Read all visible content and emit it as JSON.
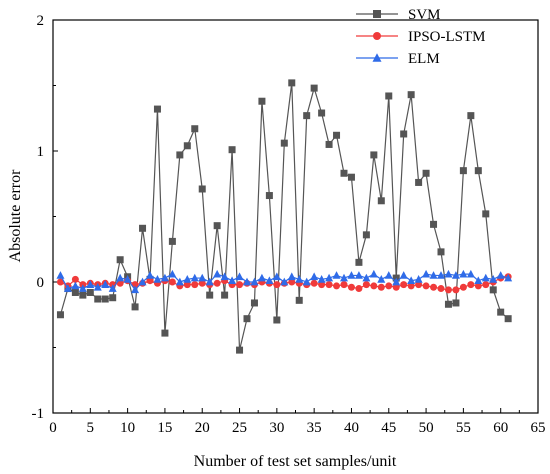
{
  "chart_data": {
    "type": "line",
    "title": "",
    "xlabel": "Number of test set samples/unit",
    "ylabel": "Absolute error",
    "xlim": [
      0,
      65
    ],
    "ylim": [
      -1,
      2
    ],
    "xticks": [
      0,
      5,
      10,
      15,
      20,
      25,
      30,
      35,
      40,
      45,
      50,
      55,
      60,
      65
    ],
    "yticks": [
      -1,
      0,
      1,
      2
    ],
    "grid": false,
    "legend_position": "top-right",
    "x": [
      1,
      2,
      3,
      4,
      5,
      6,
      7,
      8,
      9,
      10,
      11,
      12,
      13,
      14,
      15,
      16,
      17,
      18,
      19,
      20,
      21,
      22,
      23,
      24,
      25,
      26,
      27,
      28,
      29,
      30,
      31,
      32,
      33,
      34,
      35,
      36,
      37,
      38,
      39,
      40,
      41,
      42,
      43,
      44,
      45,
      46,
      47,
      48,
      49,
      50,
      51,
      52,
      53,
      54,
      55,
      56,
      57,
      58,
      59,
      60,
      61
    ],
    "series": [
      {
        "name": "SVM",
        "color": "#555555",
        "marker": "square",
        "values": [
          -0.25,
          -0.05,
          -0.08,
          -0.1,
          -0.08,
          -0.13,
          -0.13,
          -0.12,
          0.17,
          0.04,
          -0.19,
          0.41,
          0.02,
          1.32,
          -0.39,
          0.31,
          0.97,
          1.04,
          1.17,
          0.71,
          -0.1,
          0.43,
          -0.1,
          1.01,
          -0.52,
          -0.28,
          -0.16,
          1.38,
          0.66,
          -0.29,
          1.06,
          1.52,
          -0.14,
          1.27,
          1.48,
          1.29,
          1.05,
          1.12,
          0.83,
          0.8,
          0.15,
          0.36,
          0.97,
          0.62,
          1.42,
          0.03,
          1.13,
          1.43,
          0.76,
          0.83,
          0.44,
          0.23,
          -0.17,
          -0.16,
          0.85,
          1.27,
          0.85,
          0.52,
          -0.06,
          -0.23,
          -0.28
        ]
      },
      {
        "name": "IPSO-LSTM",
        "color": "#f03a3a",
        "marker": "circle",
        "values": [
          0.0,
          -0.03,
          0.02,
          -0.02,
          -0.01,
          -0.02,
          -0.01,
          -0.02,
          -0.01,
          0.01,
          -0.02,
          -0.01,
          0.01,
          -0.01,
          0.01,
          0.0,
          -0.03,
          -0.02,
          -0.02,
          -0.01,
          -0.02,
          -0.01,
          0.01,
          -0.02,
          -0.02,
          -0.01,
          -0.02,
          0.0,
          -0.01,
          -0.02,
          -0.01,
          0.0,
          -0.01,
          -0.02,
          -0.01,
          -0.02,
          -0.02,
          -0.03,
          -0.02,
          -0.04,
          -0.05,
          -0.02,
          -0.03,
          -0.04,
          -0.03,
          -0.04,
          -0.02,
          -0.03,
          -0.02,
          -0.03,
          -0.04,
          -0.05,
          -0.06,
          -0.06,
          -0.04,
          -0.02,
          -0.03,
          -0.02,
          0.0,
          0.03,
          0.04
        ]
      },
      {
        "name": "ELM",
        "color": "#2f6be8",
        "marker": "triangle",
        "values": [
          0.05,
          -0.05,
          -0.03,
          -0.05,
          -0.02,
          -0.04,
          -0.02,
          -0.05,
          0.03,
          0.02,
          -0.06,
          0.0,
          0.05,
          0.02,
          0.03,
          0.06,
          0.0,
          0.02,
          0.03,
          0.03,
          0.0,
          0.06,
          0.04,
          0.01,
          0.04,
          0.0,
          0.0,
          0.03,
          0.01,
          0.04,
          0.0,
          0.04,
          0.02,
          0.0,
          0.04,
          0.02,
          0.03,
          0.05,
          0.03,
          0.05,
          0.05,
          0.03,
          0.06,
          0.02,
          0.05,
          0.0,
          0.05,
          0.01,
          0.02,
          0.06,
          0.05,
          0.05,
          0.06,
          0.05,
          0.06,
          0.06,
          0.01,
          0.03,
          0.02,
          0.05,
          0.03
        ]
      }
    ]
  }
}
